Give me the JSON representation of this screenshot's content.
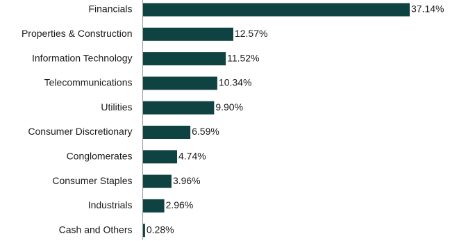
{
  "chart_data": {
    "type": "bar",
    "orientation": "horizontal",
    "categories": [
      "Financials",
      "Properties & Construction",
      "Information Technology",
      "Telecommunications",
      "Utilities",
      "Consumer Discretionary",
      "Conglomerates",
      "Consumer Staples",
      "Industrials",
      "Cash and Others"
    ],
    "values": [
      37.14,
      12.57,
      11.52,
      10.34,
      9.9,
      6.59,
      4.74,
      3.96,
      2.96,
      0.28
    ],
    "value_labels": [
      "37.14%",
      "12.57%",
      "11.52%",
      "10.34%",
      "9.90%",
      "6.59%",
      "4.74%",
      "3.96%",
      "2.96%",
      "0.28%"
    ],
    "unit": "%",
    "xlim": [
      0,
      37.14
    ],
    "title": "",
    "xlabel": "",
    "ylabel": "",
    "grid": false,
    "legend": "none",
    "bar_color": "#0f4341",
    "axis_color": "#9a9a9a"
  }
}
